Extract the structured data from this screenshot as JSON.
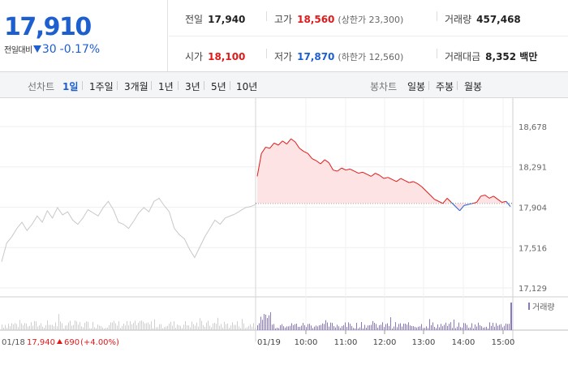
{
  "price": {
    "current": "17,910",
    "change_label": "전일대비",
    "change": "30",
    "change_pct": "-0.17%"
  },
  "stats": {
    "prev_close": {
      "label": "전일",
      "value": "17,940"
    },
    "high": {
      "label": "고가",
      "value": "18,560",
      "sub": "(상한가 23,300)"
    },
    "volume": {
      "label": "거래량",
      "value": "457,468"
    },
    "open": {
      "label": "시가",
      "value": "18,100"
    },
    "low": {
      "label": "저가",
      "value": "17,870",
      "sub": "(하한가 12,560)"
    },
    "amount": {
      "label": "거래대금",
      "value": "8,352 백만"
    }
  },
  "tabs": {
    "line_label": "선차트",
    "line_tabs": [
      "1일",
      "1주일",
      "3개월",
      "1년",
      "3년",
      "5년",
      "10년"
    ],
    "candle_label": "봉차트",
    "candle_tabs": [
      "일봉",
      "주봉",
      "월봉"
    ]
  },
  "chart_data": {
    "type": "line",
    "y_ticks": [
      "18,678",
      "18,291",
      "17,904",
      "17,516",
      "17,129"
    ],
    "ylim": [
      17129,
      18678
    ],
    "reference_price": 17940,
    "prev_day": {
      "date": "01/18",
      "close": "17,940",
      "change": "690",
      "change_pct": "(+4.00%)"
    },
    "today_date": "01/19",
    "time_labels": [
      "10:00",
      "11:00",
      "12:00",
      "13:00",
      "14:00",
      "15:00"
    ],
    "volume_legend": "거래량",
    "prev_day_series": [
      17380,
      17560,
      17620,
      17700,
      17760,
      17680,
      17740,
      17820,
      17760,
      17870,
      17800,
      17900,
      17830,
      17860,
      17780,
      17740,
      17800,
      17880,
      17850,
      17820,
      17900,
      17960,
      17880,
      17760,
      17740,
      17700,
      17770,
      17850,
      17900,
      17860,
      17960,
      17990,
      17920,
      17860,
      17700,
      17640,
      17600,
      17500,
      17420,
      17520,
      17620,
      17700,
      17780,
      17740,
      17800,
      17820,
      17840,
      17870,
      17900,
      17910,
      17930
    ],
    "today_series": [
      18200,
      18420,
      18480,
      18470,
      18520,
      18500,
      18540,
      18510,
      18560,
      18530,
      18470,
      18440,
      18420,
      18370,
      18350,
      18320,
      18360,
      18330,
      18260,
      18250,
      18280,
      18260,
      18270,
      18250,
      18230,
      18240,
      18220,
      18200,
      18230,
      18210,
      18180,
      18190,
      18170,
      18150,
      18180,
      18160,
      18140,
      18150,
      18130,
      18100,
      18060,
      18020,
      17980,
      17960,
      17940,
      17990,
      17950,
      17910,
      17870,
      17920,
      17930,
      17940,
      17950,
      18010,
      18020,
      17990,
      18010,
      17980,
      17950,
      17960,
      17910
    ]
  }
}
